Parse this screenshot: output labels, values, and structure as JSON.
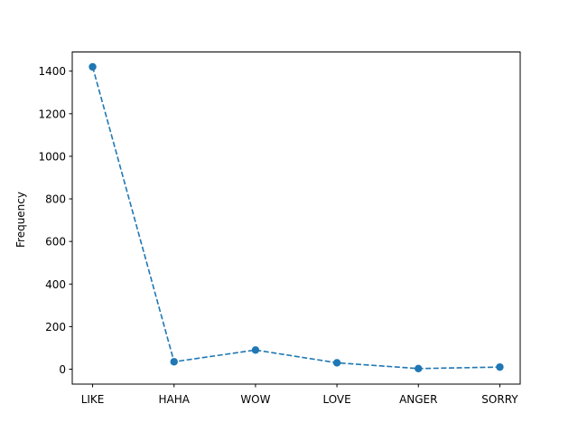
{
  "chart_data": {
    "type": "line",
    "categories": [
      "LIKE",
      "HAHA",
      "WOW",
      "LOVE",
      "ANGER",
      "SORRY"
    ],
    "series": [
      {
        "values": [
          1420,
          35,
          90,
          30,
          3,
          10
        ]
      }
    ],
    "xlabel": "",
    "ylabel": "Frequency",
    "ylim": [
      -70,
      1490
    ],
    "yticks": [
      0,
      200,
      400,
      600,
      800,
      1000,
      1200,
      1400
    ],
    "grid": false,
    "line_style": "dashed",
    "marker": "circle",
    "color": "#1f77b4"
  }
}
